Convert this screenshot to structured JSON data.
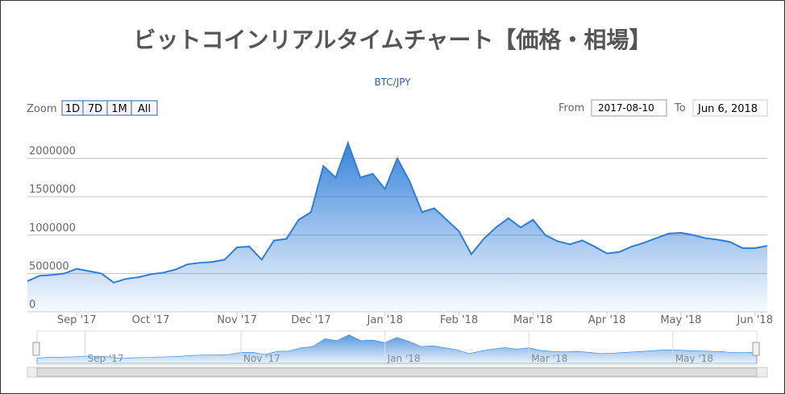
{
  "chart_data": {
    "type": "area",
    "title": "ビットコインリアルタイムチャート【価格・相場】",
    "subtitle": "BTC/JPY",
    "color": "#2f7ed8",
    "categories": [
      null,
      null,
      null,
      null,
      "Sep '17",
      null,
      null,
      null,
      null,
      null,
      "Oct '17",
      null,
      null,
      null,
      null,
      null,
      null,
      "Nov '17",
      null,
      null,
      null,
      null,
      null,
      "Dec '17",
      null,
      null,
      null,
      null,
      null,
      "Jan '18",
      null,
      null,
      null,
      null,
      null,
      "Feb '18",
      null,
      null,
      null,
      null,
      null,
      "Mar '18",
      null,
      null,
      null,
      null,
      null,
      "Apr '18",
      null,
      null,
      null,
      null,
      null,
      "May '18",
      null,
      null,
      null,
      null,
      null,
      "Jun '18",
      null
    ],
    "values": [
      400000,
      470000,
      480000,
      500000,
      560000,
      530000,
      500000,
      380000,
      430000,
      450000,
      490000,
      510000,
      550000,
      620000,
      640000,
      650000,
      680000,
      840000,
      850000,
      680000,
      930000,
      950000,
      1200000,
      1300000,
      1900000,
      1750000,
      2200000,
      1750000,
      1800000,
      1600000,
      2000000,
      1700000,
      1300000,
      1350000,
      1200000,
      1050000,
      750000,
      950000,
      1100000,
      1220000,
      1100000,
      1200000,
      1000000,
      920000,
      880000,
      930000,
      850000,
      760000,
      780000,
      850000,
      900000,
      960000,
      1020000,
      1030000,
      1000000,
      960000,
      940000,
      910000,
      830000,
      830000,
      860000
    ],
    "ylim": [
      0,
      2300000
    ],
    "yticks": [
      0,
      500000,
      1000000,
      1500000,
      2000000
    ],
    "grid": true,
    "navigator": true
  },
  "ui": {
    "zoom_label": "Zoom",
    "buttons": [
      "1D",
      "7D",
      "1M",
      "All"
    ],
    "from_label": "From",
    "from_value": "2017-08-10",
    "to_label": "To",
    "to_value": "Jun 6, 2018"
  }
}
